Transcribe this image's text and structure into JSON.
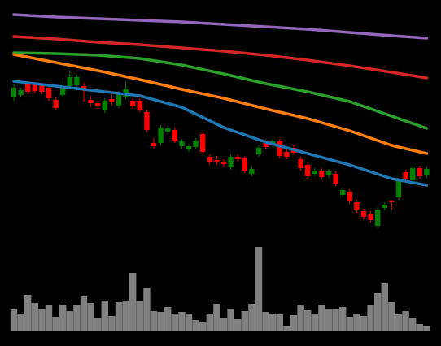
{
  "chart_data": [
    {
      "type": "candlestick",
      "ylim": [
        0,
        300
      ],
      "up_color": "#008000",
      "down_color": "#ff0000",
      "open": [
        180,
        183,
        197,
        196,
        195,
        192,
        177,
        183,
        194,
        195,
        194,
        177,
        173,
        164,
        178,
        170,
        180,
        176,
        176,
        162,
        124,
        124,
        138,
        140,
        120,
        116,
        119,
        135,
        107,
        103,
        101,
        94,
        107,
        105,
        86,
        110,
        125,
        122,
        126,
        113,
        118,
        104,
        97,
        86,
        90,
        84,
        86,
        60,
        64,
        51,
        40,
        37,
        22,
        44,
        53,
        57,
        88,
        78,
        93,
        84
      ],
      "high": [
        196,
        192,
        200,
        199,
        198,
        195,
        180,
        200,
        212,
        208,
        198,
        182,
        176,
        179,
        184,
        188,
        200,
        179,
        179,
        165,
        130,
        146,
        145,
        143,
        129,
        123,
        130,
        138,
        110,
        108,
        104,
        110,
        110,
        108,
        95,
        121,
        128,
        129,
        129,
        116,
        121,
        107,
        100,
        93,
        93,
        92,
        89,
        69,
        67,
        54,
        43,
        40,
        45,
        51,
        54,
        81,
        91,
        96,
        96,
        95
      ],
      "low": [
        176,
        180,
        184,
        185,
        184,
        176,
        164,
        180,
        192,
        192,
        175,
        168,
        166,
        161,
        170,
        167,
        178,
        166,
        162,
        137,
        117,
        121,
        135,
        124,
        117,
        113,
        116,
        110,
        97,
        97,
        95,
        91,
        101,
        87,
        83,
        107,
        116,
        119,
        105,
        104,
        109,
        90,
        80,
        83,
        79,
        81,
        71,
        57,
        49,
        38,
        30,
        26,
        19,
        41,
        42,
        54,
        77,
        75,
        80,
        81
      ],
      "close": [
        192,
        189,
        187,
        188,
        187,
        179,
        167,
        194,
        205,
        205,
        190,
        173,
        169,
        176,
        174,
        185,
        190,
        169,
        165,
        140,
        120,
        143,
        142,
        127,
        126,
        120,
        127,
        113,
        100,
        100,
        98,
        107,
        104,
        90,
        92,
        118,
        119,
        126,
        108,
        107,
        112,
        93,
        83,
        90,
        82,
        89,
        74,
        66,
        52,
        41,
        33,
        29,
        42,
        48,
        51,
        78,
        80,
        93,
        83,
        92
      ],
      "series": [
        {
          "color": "#9467bd",
          "x": [
            0,
            6,
            12,
            18,
            24,
            30,
            36,
            42,
            48,
            54,
            59
          ],
          "values": [
            282,
            279,
            277,
            275,
            273,
            270,
            267,
            264,
            260,
            256,
            253
          ]
        },
        {
          "color": "#d62728",
          "x": [
            0,
            6,
            12,
            18,
            24,
            30,
            36,
            42,
            48,
            54,
            59
          ],
          "values": [
            255,
            252,
            248,
            245,
            241,
            237,
            232,
            226,
            219,
            211,
            204
          ]
        },
        {
          "color": "#2ca02c",
          "x": [
            0,
            6,
            12,
            18,
            24,
            30,
            36,
            42,
            48,
            54,
            59
          ],
          "values": [
            235,
            234,
            232,
            228,
            220,
            209,
            197,
            187,
            175,
            157,
            142
          ]
        },
        {
          "color": "#ff7f0e",
          "x": [
            0,
            6,
            12,
            18,
            24,
            30,
            36,
            42,
            48,
            54,
            59
          ],
          "values": [
            233,
            223,
            213,
            202,
            190,
            179,
            166,
            154,
            139,
            121,
            111
          ]
        },
        {
          "color": "#1f77b4",
          "x": [
            0,
            6,
            12,
            18,
            24,
            30,
            36,
            42,
            48,
            54,
            59
          ],
          "values": [
            200,
            194,
            188,
            182,
            168,
            143,
            125,
            111,
            97,
            80,
            72
          ]
        }
      ]
    },
    {
      "type": "bar",
      "ylim": [
        0,
        110
      ],
      "color": "#808080",
      "values": [
        27,
        22,
        45,
        35,
        28,
        32,
        18,
        33,
        25,
        32,
        43,
        35,
        16,
        38,
        19,
        36,
        38,
        72,
        37,
        54,
        25,
        24,
        30,
        22,
        24,
        22,
        14,
        11,
        22,
        34,
        16,
        28,
        15,
        25,
        34,
        104,
        24,
        22,
        21,
        7,
        20,
        33,
        26,
        21,
        33,
        28,
        28,
        30,
        18,
        22,
        19,
        32,
        47,
        59,
        36,
        21,
        25,
        17,
        9,
        7
      ]
    }
  ]
}
